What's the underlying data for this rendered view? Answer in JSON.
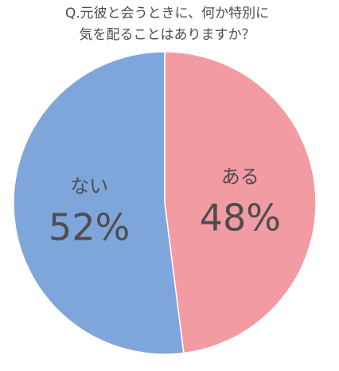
{
  "chart_data": {
    "type": "pie",
    "title": [
      "Q.元彼と会うときに、何か特別に",
      "気を配ることはありますか？"
    ],
    "categories": [
      "ある",
      "ない"
    ],
    "values": [
      48,
      52
    ],
    "value_labels": [
      "48%",
      "52%"
    ],
    "colors": [
      "#f29ba2",
      "#7fa6da"
    ]
  }
}
